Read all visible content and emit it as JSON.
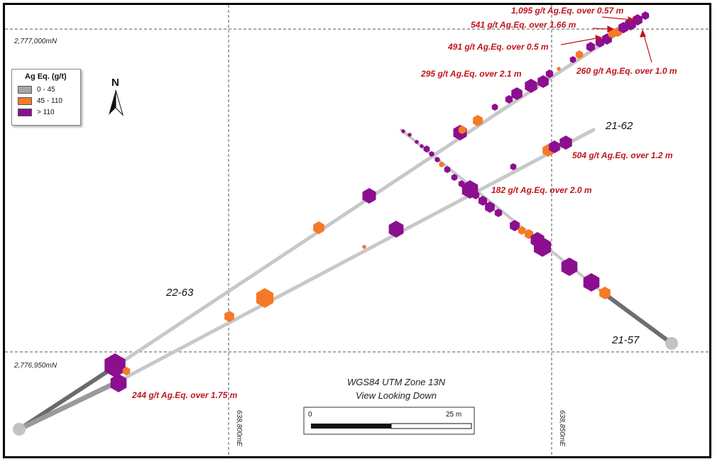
{
  "grid": {
    "northing_top": "2,777,000mN",
    "northing_bottom": "2,776,950mN",
    "easting_left": "638,800mE",
    "easting_right": "638,850mE"
  },
  "legend": {
    "title": "Ag Eq. (g/t)",
    "items": [
      {
        "label": "0 - 45",
        "color": "#a6a6a6"
      },
      {
        "label": "45 - 110",
        "color": "#f47a26"
      },
      {
        "label": "> 110",
        "color": "#8b0f8f"
      }
    ]
  },
  "north_arrow": {
    "label": "N",
    "icon": "north-arrow-icon"
  },
  "holes": [
    {
      "id": "22-63"
    },
    {
      "id": "21-62"
    },
    {
      "id": "21-57"
    }
  ],
  "intercepts": [
    "1,095 g/t Ag.Eq. over 0.57 m",
    "541 g/t Ag.Eq. over 1.66 m",
    "491 g/t Ag.Eq. over 0.5 m",
    "260 g/t Ag.Eq. over 1.0 m",
    "295 g/t Ag.Eq. over 2.1 m",
    "504 g/t Ag.Eq. over 1.2 m",
    "182 g/t Ag.Eq. over 2.0 m",
    "244 g/t Ag.Eq. over 1.75 m"
  ],
  "projection": {
    "line1": "WGS84 UTM Zone 13N",
    "line2": "View Looking Down"
  },
  "scale_bar": {
    "start": "0",
    "end": "25 m"
  },
  "colors": {
    "low": "#a6a6a6",
    "mid": "#f47a26",
    "high": "#8b0f8f",
    "label_red": "#c0141c"
  }
}
